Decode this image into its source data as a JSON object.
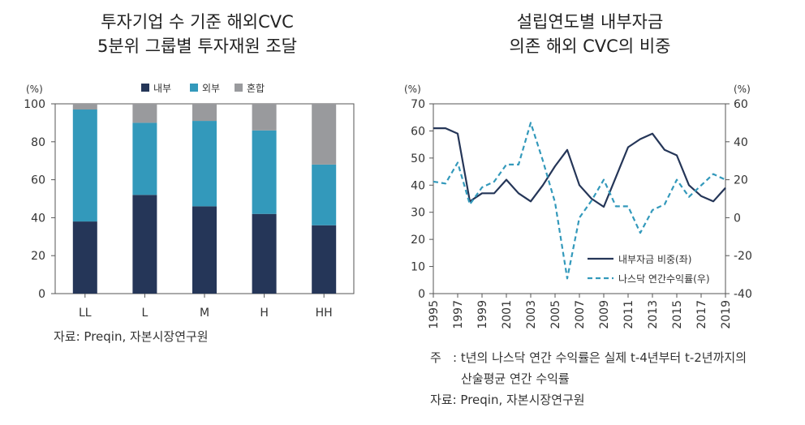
{
  "left": {
    "title_line1": "투자기업 수 기준 해외CVC",
    "title_line2": "5분위 그룹별 투자재원 조달",
    "y_unit": "(%)",
    "source": "자료: Preqin, 자본시장연구원"
  },
  "right": {
    "title_line1": "설립연도별 내부자금",
    "title_line2": "의존 해외 CVC의 비중",
    "y_unit_left": "(%)",
    "y_unit_right": "(%)",
    "note_label": "주",
    "note_line1": ": t년의 나스닥 연간 수익률은 실제 t-4년부터 t-2년까지의",
    "note_line2": "산술평균 연간 수익률",
    "source": "자료: Preqin, 자본시장연구원"
  },
  "colors": {
    "internal": "#253658",
    "external": "#3399bb",
    "mixed": "#999a9d",
    "nasdaq": "#3399bb",
    "axis": "#333333"
  },
  "chart_data": [
    {
      "type": "bar",
      "stacked": true,
      "categories": [
        "LL",
        "L",
        "M",
        "H",
        "HH"
      ],
      "series": [
        {
          "name": "내부",
          "values": [
            38,
            52,
            46,
            42,
            36
          ]
        },
        {
          "name": "외부",
          "values": [
            59,
            38,
            45,
            44,
            32
          ]
        },
        {
          "name": "혼합",
          "values": [
            3,
            10,
            9,
            14,
            32
          ]
        }
      ],
      "ylim": [
        0,
        100
      ],
      "yticks": [
        0,
        20,
        40,
        60,
        80,
        100
      ],
      "legend": "top-center",
      "grid": false
    },
    {
      "type": "line",
      "x": [
        1995,
        1996,
        1997,
        1998,
        1999,
        2000,
        2001,
        2002,
        2003,
        2004,
        2005,
        2006,
        2007,
        2008,
        2009,
        2010,
        2011,
        2012,
        2013,
        2014,
        2015,
        2016,
        2017,
        2018,
        2019
      ],
      "xticks": [
        "1995",
        "1997",
        "1999",
        "2001",
        "2003",
        "2005",
        "2007",
        "2009",
        "2011",
        "2013",
        "2015",
        "2017",
        "2019"
      ],
      "series": [
        {
          "name": "내부자금 비중(좌)",
          "axis": "left",
          "style": "solid",
          "values": [
            61,
            61,
            59,
            34,
            37,
            37,
            42,
            37,
            34,
            40,
            47,
            53,
            40,
            35,
            32,
            43,
            54,
            57,
            59,
            53,
            51,
            40,
            36,
            34,
            39
          ]
        },
        {
          "name": "나스닥 연간수익률(우)",
          "axis": "right",
          "style": "dashed",
          "values": [
            19,
            18,
            29,
            7,
            16,
            19,
            28,
            28,
            50,
            30,
            8,
            -32,
            0,
            9,
            20,
            6,
            6,
            -8,
            4,
            7,
            20,
            11,
            17,
            23,
            20
          ]
        }
      ],
      "ylim_left": [
        0,
        70
      ],
      "yticks_left": [
        0,
        10,
        20,
        30,
        40,
        50,
        60,
        70
      ],
      "ylim_right": [
        -40,
        60
      ],
      "yticks_right": [
        -40,
        -20,
        0,
        20,
        40,
        60
      ],
      "legend": "bottom-right",
      "grid": false
    }
  ]
}
